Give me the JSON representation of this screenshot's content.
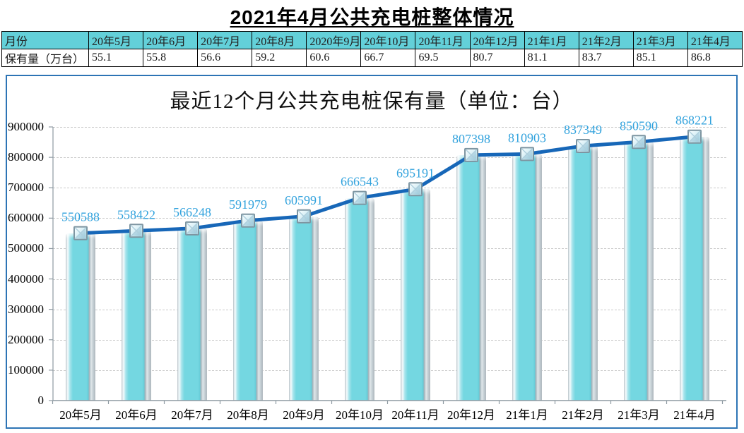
{
  "page": {
    "title": "2021年4月公共充电桩整体情况"
  },
  "table": {
    "row_header_label": "月份",
    "row_value_label": "保有量（万台）",
    "months": [
      "20年5月",
      "20年6月",
      "20年7月",
      "20年8月",
      "2020年9月",
      "20年10月",
      "20年11月",
      "20年12月",
      "21年1月",
      "21年2月",
      "21年3月",
      "21年4月"
    ],
    "values": [
      "55.1",
      "55.8",
      "56.6",
      "59.2",
      "60.6",
      "66.7",
      "69.5",
      "80.7",
      "81.1",
      "83.7",
      "85.1",
      "86.8"
    ]
  },
  "chart_data": {
    "type": "bar+line",
    "title": "最近12个月公共充电桩保有量（单位：台）",
    "categories": [
      "20年5月",
      "20年6月",
      "20年7月",
      "20年8月",
      "20年9月",
      "20年10月",
      "20年11月",
      "20年12月",
      "21年1月",
      "21年2月",
      "21年3月",
      "21年4月"
    ],
    "values": [
      550588,
      558422,
      566248,
      591979,
      605991,
      666543,
      695191,
      807398,
      810903,
      837349,
      850590,
      868221
    ],
    "data_labels": true,
    "xlabel": "",
    "ylabel": "",
    "ylim": [
      0,
      900000
    ],
    "ytick_step": 100000,
    "grid": "horizontal-dashed",
    "legend": "none"
  },
  "colors": {
    "table_header_bg": "#63d0d9",
    "bar_fill": "#74d7e1",
    "line": "#1767b8",
    "data_label": "#31a2dd",
    "panel_border": "#2d74b5",
    "axis": "#8e9aa2",
    "gridline": "#cbcbcb"
  }
}
